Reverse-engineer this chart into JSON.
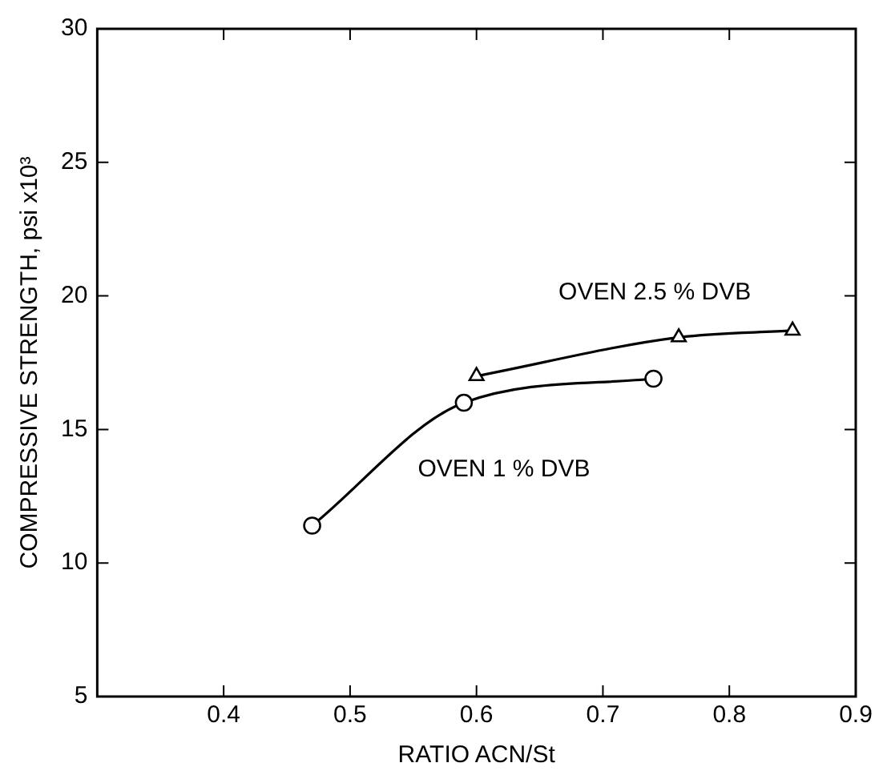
{
  "chart_data": {
    "type": "line",
    "xlabel": "RATIO ACN/St",
    "ylabel": "COMPRESSIVE STRENGTH, psi x10³",
    "xlim": [
      0.3,
      0.9
    ],
    "xticks": [
      0.4,
      0.5,
      0.6,
      0.7,
      0.8,
      0.9
    ],
    "ylim": [
      5,
      30
    ],
    "yticks": [
      5,
      10,
      15,
      20,
      25,
      30
    ],
    "grid": false,
    "legend": false,
    "series": [
      {
        "name": "OVEN 1 % DVB",
        "color": "#000000",
        "marker": "circle",
        "x": [
          0.47,
          0.59,
          0.74
        ],
        "values": [
          11.4,
          16,
          16.9
        ]
      },
      {
        "name": "OVEN 2.5 % DVB",
        "color": "#000000",
        "marker": "triangle",
        "x": [
          0.6,
          0.76,
          0.85
        ],
        "values": [
          17,
          18.45,
          18.7
        ]
      }
    ]
  }
}
